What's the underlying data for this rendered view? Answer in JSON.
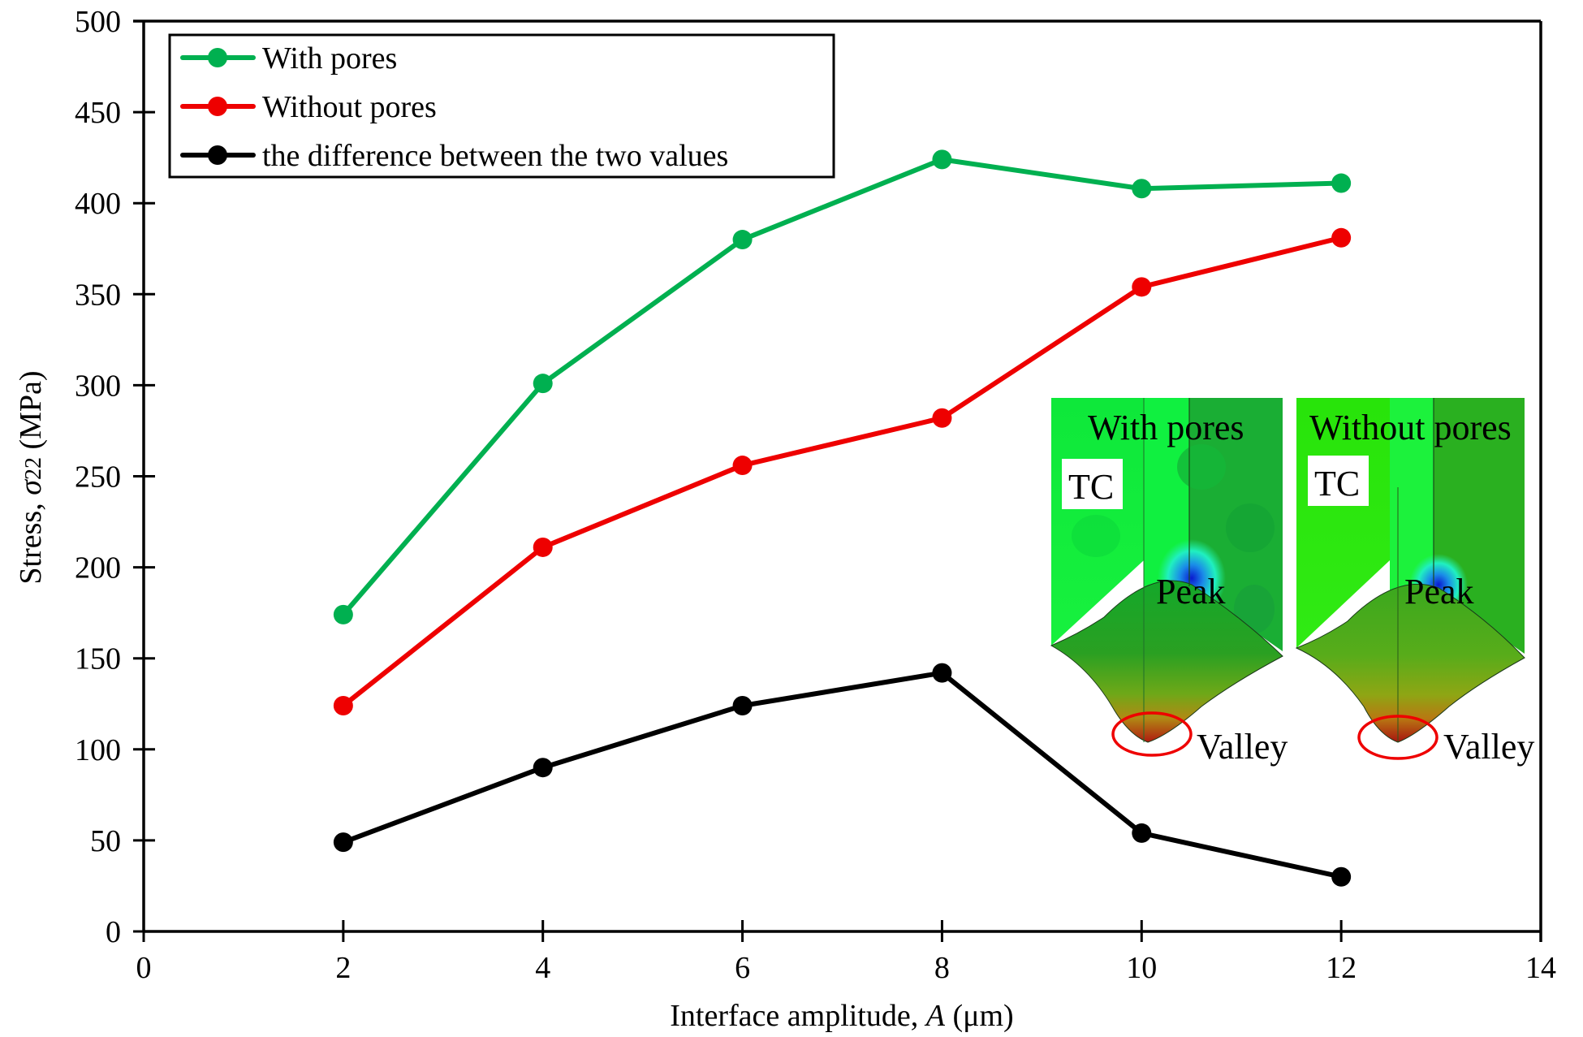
{
  "chart_data": {
    "type": "line",
    "title": "",
    "xlabel": "Interface amplitude, A (μm)",
    "xlabel_parts": {
      "prefix": "Interface amplitude, ",
      "italic": "A",
      "suffix": " (μm)"
    },
    "ylabel": "Stress, σ22 (MPa)",
    "ylabel_parts": {
      "prefix": "Stress, ",
      "symbol": "σ",
      "subscript": "22",
      "suffix": " (MPa)"
    },
    "xlim": [
      0,
      14
    ],
    "ylim": [
      0,
      500
    ],
    "xticks": [
      0,
      2,
      4,
      6,
      8,
      10,
      12,
      14
    ],
    "yticks": [
      0,
      50,
      100,
      150,
      200,
      250,
      300,
      350,
      400,
      450,
      500
    ],
    "xtick_labels": [
      "0",
      "2",
      "4",
      "6",
      "8",
      "10",
      "12",
      "14"
    ],
    "ytick_labels": [
      "0",
      "50",
      "100",
      "150",
      "200",
      "250",
      "300",
      "350",
      "400",
      "450",
      "500"
    ],
    "grid": false,
    "legend_position": "top-left",
    "x": [
      2,
      4,
      6,
      8,
      10,
      12
    ],
    "series": [
      {
        "name": "With pores",
        "color": "#00b050",
        "values": [
          174,
          301,
          380,
          424,
          408,
          411
        ]
      },
      {
        "name": "Without pores",
        "color": "#ee0000",
        "values": [
          124,
          211,
          256,
          282,
          354,
          381
        ]
      },
      {
        "name": "the difference between the two values",
        "color": "#000000",
        "values": [
          49,
          90,
          124,
          142,
          54,
          30
        ]
      }
    ],
    "insets": [
      {
        "title": "With pores",
        "layer_label": "TC",
        "peak_label": "Peak",
        "valley_label": "Valley"
      },
      {
        "title": "Without pores",
        "layer_label": "TC",
        "peak_label": "Peak",
        "valley_label": "Valley"
      }
    ]
  }
}
